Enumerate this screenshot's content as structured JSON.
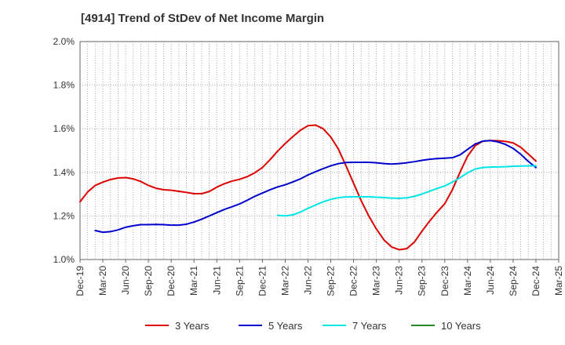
{
  "chart_data": {
    "type": "line",
    "title": "[4914]  Trend of StDev of Net Income Margin",
    "xlabel": "",
    "ylabel": "",
    "x_ticks": [
      "Dec-19",
      "Mar-20",
      "Jun-20",
      "Sep-20",
      "Dec-20",
      "Mar-21",
      "Jun-21",
      "Sep-21",
      "Dec-21",
      "Mar-22",
      "Jun-22",
      "Sep-22",
      "Dec-22",
      "Mar-23",
      "Jun-23",
      "Sep-23",
      "Dec-23",
      "Mar-24",
      "Jun-24",
      "Sep-24",
      "Dec-24",
      "Mar-25"
    ],
    "y_ticks": [
      "1.0%",
      "1.2%",
      "1.4%",
      "1.6%",
      "1.8%",
      "2.0%"
    ],
    "ylim": [
      1.0,
      2.0
    ],
    "grid": true,
    "legend_position": "bottom",
    "series": [
      {
        "name": "3 Years",
        "color": "#dd0000",
        "values": [
          [
            "2019-12",
            1.265
          ],
          [
            "2020-01",
            1.31
          ],
          [
            "2020-02",
            1.34
          ],
          [
            "2020-03",
            1.355
          ],
          [
            "2020-04",
            1.367
          ],
          [
            "2020-05",
            1.374
          ],
          [
            "2020-06",
            1.376
          ],
          [
            "2020-07",
            1.37
          ],
          [
            "2020-08",
            1.358
          ],
          [
            "2020-09",
            1.34
          ],
          [
            "2020-10",
            1.327
          ],
          [
            "2020-11",
            1.32
          ],
          [
            "2020-12",
            1.318
          ],
          [
            "2021-01",
            1.313
          ],
          [
            "2021-02",
            1.308
          ],
          [
            "2021-03",
            1.302
          ],
          [
            "2021-04",
            1.302
          ],
          [
            "2021-05",
            1.312
          ],
          [
            "2021-06",
            1.332
          ],
          [
            "2021-07",
            1.348
          ],
          [
            "2021-08",
            1.36
          ],
          [
            "2021-09",
            1.368
          ],
          [
            "2021-10",
            1.38
          ],
          [
            "2021-11",
            1.398
          ],
          [
            "2021-12",
            1.422
          ],
          [
            "2022-01",
            1.458
          ],
          [
            "2022-02",
            1.497
          ],
          [
            "2022-03",
            1.532
          ],
          [
            "2022-04",
            1.564
          ],
          [
            "2022-05",
            1.593
          ],
          [
            "2022-06",
            1.614
          ],
          [
            "2022-07",
            1.617
          ],
          [
            "2022-08",
            1.6
          ],
          [
            "2022-09",
            1.562
          ],
          [
            "2022-10",
            1.507
          ],
          [
            "2022-11",
            1.43
          ],
          [
            "2022-12",
            1.35
          ],
          [
            "2023-01",
            1.27
          ],
          [
            "2023-02",
            1.2
          ],
          [
            "2023-03",
            1.14
          ],
          [
            "2023-04",
            1.09
          ],
          [
            "2023-05",
            1.058
          ],
          [
            "2023-06",
            1.045
          ],
          [
            "2023-07",
            1.05
          ],
          [
            "2023-08",
            1.08
          ],
          [
            "2023-09",
            1.13
          ],
          [
            "2023-10",
            1.176
          ],
          [
            "2023-11",
            1.218
          ],
          [
            "2023-12",
            1.256
          ],
          [
            "2024-01",
            1.32
          ],
          [
            "2024-02",
            1.4
          ],
          [
            "2024-03",
            1.474
          ],
          [
            "2024-04",
            1.522
          ],
          [
            "2024-05",
            1.543
          ],
          [
            "2024-06",
            1.546
          ],
          [
            "2024-07",
            1.545
          ],
          [
            "2024-08",
            1.542
          ],
          [
            "2024-09",
            1.535
          ],
          [
            "2024-10",
            1.515
          ],
          [
            "2024-11",
            1.484
          ],
          [
            "2024-12",
            1.452
          ]
        ]
      },
      {
        "name": "5 Years",
        "color": "#0000cc",
        "values": [
          [
            "2020-02",
            1.133
          ],
          [
            "2020-03",
            1.125
          ],
          [
            "2020-04",
            1.128
          ],
          [
            "2020-05",
            1.136
          ],
          [
            "2020-06",
            1.148
          ],
          [
            "2020-07",
            1.155
          ],
          [
            "2020-08",
            1.16
          ],
          [
            "2020-09",
            1.16
          ],
          [
            "2020-10",
            1.161
          ],
          [
            "2020-11",
            1.16
          ],
          [
            "2020-12",
            1.158
          ],
          [
            "2021-01",
            1.158
          ],
          [
            "2021-02",
            1.162
          ],
          [
            "2021-03",
            1.172
          ],
          [
            "2021-04",
            1.185
          ],
          [
            "2021-05",
            1.2
          ],
          [
            "2021-06",
            1.215
          ],
          [
            "2021-07",
            1.23
          ],
          [
            "2021-08",
            1.242
          ],
          [
            "2021-09",
            1.255
          ],
          [
            "2021-10",
            1.272
          ],
          [
            "2021-11",
            1.29
          ],
          [
            "2021-12",
            1.305
          ],
          [
            "2022-01",
            1.32
          ],
          [
            "2022-02",
            1.333
          ],
          [
            "2022-03",
            1.343
          ],
          [
            "2022-04",
            1.356
          ],
          [
            "2022-05",
            1.37
          ],
          [
            "2022-06",
            1.388
          ],
          [
            "2022-07",
            1.403
          ],
          [
            "2022-08",
            1.417
          ],
          [
            "2022-09",
            1.43
          ],
          [
            "2022-10",
            1.44
          ],
          [
            "2022-11",
            1.445
          ],
          [
            "2022-12",
            1.446
          ],
          [
            "2023-01",
            1.446
          ],
          [
            "2023-02",
            1.446
          ],
          [
            "2023-03",
            1.444
          ],
          [
            "2023-04",
            1.44
          ],
          [
            "2023-05",
            1.438
          ],
          [
            "2023-06",
            1.44
          ],
          [
            "2023-07",
            1.444
          ],
          [
            "2023-08",
            1.449
          ],
          [
            "2023-09",
            1.455
          ],
          [
            "2023-10",
            1.46
          ],
          [
            "2023-11",
            1.463
          ],
          [
            "2023-12",
            1.465
          ],
          [
            "2024-01",
            1.467
          ],
          [
            "2024-02",
            1.48
          ],
          [
            "2024-03",
            1.505
          ],
          [
            "2024-04",
            1.53
          ],
          [
            "2024-05",
            1.543
          ],
          [
            "2024-06",
            1.546
          ],
          [
            "2024-07",
            1.54
          ],
          [
            "2024-08",
            1.528
          ],
          [
            "2024-09",
            1.51
          ],
          [
            "2024-10",
            1.483
          ],
          [
            "2024-11",
            1.45
          ],
          [
            "2024-12",
            1.422
          ]
        ]
      },
      {
        "name": "7 Years",
        "color": "#00e5e5",
        "values": [
          [
            "2022-02",
            1.203
          ],
          [
            "2022-03",
            1.2
          ],
          [
            "2022-04",
            1.205
          ],
          [
            "2022-05",
            1.218
          ],
          [
            "2022-06",
            1.235
          ],
          [
            "2022-07",
            1.25
          ],
          [
            "2022-08",
            1.265
          ],
          [
            "2022-09",
            1.276
          ],
          [
            "2022-10",
            1.284
          ],
          [
            "2022-11",
            1.287
          ],
          [
            "2022-12",
            1.288
          ],
          [
            "2023-01",
            1.288
          ],
          [
            "2023-02",
            1.288
          ],
          [
            "2023-03",
            1.286
          ],
          [
            "2023-04",
            1.284
          ],
          [
            "2023-05",
            1.282
          ],
          [
            "2023-06",
            1.281
          ],
          [
            "2023-07",
            1.283
          ],
          [
            "2023-08",
            1.29
          ],
          [
            "2023-09",
            1.3
          ],
          [
            "2023-10",
            1.313
          ],
          [
            "2023-11",
            1.326
          ],
          [
            "2023-12",
            1.338
          ],
          [
            "2024-01",
            1.355
          ],
          [
            "2024-02",
            1.375
          ],
          [
            "2024-03",
            1.398
          ],
          [
            "2024-04",
            1.415
          ],
          [
            "2024-05",
            1.422
          ],
          [
            "2024-06",
            1.424
          ],
          [
            "2024-07",
            1.425
          ],
          [
            "2024-08",
            1.426
          ],
          [
            "2024-09",
            1.428
          ],
          [
            "2024-10",
            1.429
          ],
          [
            "2024-11",
            1.43
          ],
          [
            "2024-12",
            1.43
          ]
        ]
      },
      {
        "name": "10 Years",
        "color": "#228b22",
        "values": []
      }
    ]
  }
}
